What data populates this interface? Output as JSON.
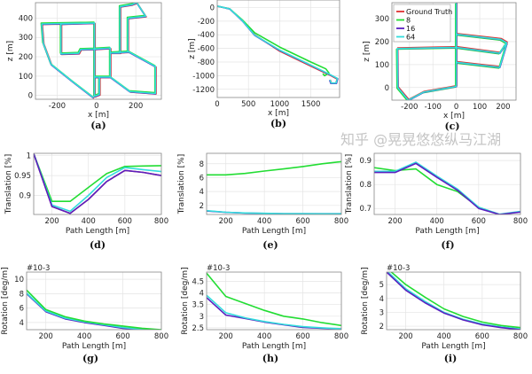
{
  "colors": {
    "ground_truth": "#e03030",
    "8": "#22dd33",
    "16": "#5a1fc0",
    "64": "#33dddd"
  },
  "watermark": "知乎 @晃晃悠悠纵马江湖",
  "chart_data": [
    {
      "id": "a",
      "type": "line",
      "caption": "(a)",
      "xlabel": "x [m]",
      "ylabel": "z [m]",
      "xlim": [
        -310,
        330
      ],
      "ylim": [
        -20,
        480
      ],
      "xticks": [
        -200,
        0,
        200
      ],
      "yticks": [
        0,
        100,
        200,
        300,
        400
      ],
      "grid": true,
      "series": [
        {
          "color_key": "ground_truth",
          "offset": [
            3,
            -3
          ]
        },
        {
          "color_key": "8",
          "offset": [
            -3,
            4
          ]
        },
        {
          "color_key": "16",
          "offset": [
            0,
            -2
          ]
        },
        {
          "color_key": "64",
          "offset": [
            0,
            0
          ]
        }
      ],
      "points": [
        [
          -15,
          -12
        ],
        [
          -120,
          70
        ],
        [
          -230,
          160
        ],
        [
          -270,
          270
        ],
        [
          -278,
          370
        ],
        [
          -180,
          372
        ],
        [
          -10,
          375
        ],
        [
          -10,
          240
        ],
        [
          -80,
          238
        ],
        [
          -90,
          218
        ],
        [
          -180,
          215
        ],
        [
          -180,
          370
        ],
        [
          -10,
          375
        ],
        [
          -10,
          95
        ],
        [
          70,
          95
        ],
        [
          70,
          245
        ],
        [
          -10,
          240
        ],
        [
          -10,
          -5
        ],
        [
          15,
          5
        ],
        [
          15,
          95
        ],
        [
          70,
          95
        ],
        [
          170,
          20
        ],
        [
          300,
          10
        ],
        [
          300,
          150
        ],
        [
          165,
          225
        ],
        [
          75,
          220
        ],
        [
          120,
          220
        ],
        [
          120,
          460
        ],
        [
          180,
          470
        ],
        [
          205,
          480
        ],
        [
          250,
          410
        ],
        [
          160,
          400
        ],
        [
          160,
          225
        ]
      ]
    },
    {
      "id": "b",
      "type": "line",
      "caption": "(b)",
      "xlabel": "x [m]",
      "ylabel": "z [m]",
      "xlim": [
        0,
        1960
      ],
      "ylim": [
        -1320,
        110
      ],
      "xticks": [
        0,
        500,
        1000,
        1500
      ],
      "yticks": [
        0,
        -200,
        -400,
        -600,
        -800,
        -1000,
        -1200
      ],
      "grid": true,
      "series": [
        {
          "color_key": "ground_truth",
          "points": [
            [
              0,
              20
            ],
            [
              200,
              -20
            ],
            [
              400,
              -190
            ],
            [
              600,
              -400
            ],
            [
              1000,
              -640
            ],
            [
              1500,
              -860
            ],
            [
              1800,
              -990
            ],
            [
              1920,
              -1050
            ],
            [
              1900,
              -1110
            ],
            [
              1830,
              -1110
            ],
            [
              1810,
              -1060
            ]
          ]
        },
        {
          "color_key": "8",
          "points": [
            [
              0,
              20
            ],
            [
              200,
              -20
            ],
            [
              400,
              -180
            ],
            [
              600,
              -370
            ],
            [
              1000,
              -580
            ],
            [
              1500,
              -800
            ],
            [
              1740,
              -900
            ],
            [
              1790,
              -960
            ],
            [
              1720,
              -1000
            ],
            [
              1690,
              -970
            ]
          ]
        },
        {
          "color_key": "16",
          "points": [
            [
              0,
              20
            ],
            [
              200,
              -22
            ],
            [
              400,
              -195
            ],
            [
              600,
              -410
            ],
            [
              1000,
              -630
            ],
            [
              1500,
              -850
            ],
            [
              1800,
              -985
            ],
            [
              1930,
              -1045
            ],
            [
              1910,
              -1115
            ],
            [
              1820,
              -1115
            ],
            [
              1800,
              -1065
            ]
          ]
        },
        {
          "color_key": "64",
          "points": [
            [
              0,
              20
            ],
            [
              200,
              -20
            ],
            [
              400,
              -192
            ],
            [
              600,
              -405
            ],
            [
              1000,
              -625
            ],
            [
              1500,
              -845
            ],
            [
              1800,
              -980
            ],
            [
              1925,
              -1040
            ],
            [
              1905,
              -1108
            ],
            [
              1825,
              -1108
            ],
            [
              1805,
              -1060
            ]
          ]
        }
      ]
    },
    {
      "id": "c",
      "type": "line",
      "caption": "(c)",
      "xlabel": "x [m]",
      "ylabel": "z [m]",
      "xlim": [
        -275,
        255
      ],
      "ylim": [
        -55,
        370
      ],
      "xticks": [
        -200,
        -100,
        0,
        100,
        200
      ],
      "yticks": [
        0,
        100,
        200,
        300
      ],
      "grid": true,
      "legend": {
        "placement": "top-left",
        "entries": [
          "Ground Truth",
          "8",
          "16",
          "64"
        ]
      },
      "series": [
        {
          "name": "Ground Truth",
          "color_key": "ground_truth",
          "offset": [
            2,
            3
          ]
        },
        {
          "name": "8",
          "color_key": "8",
          "offset": [
            -3,
            -3
          ]
        },
        {
          "name": "16",
          "color_key": "16",
          "offset": [
            1,
            -1
          ]
        },
        {
          "name": "64",
          "color_key": "64",
          "offset": [
            0,
            0
          ]
        }
      ],
      "points": [
        [
          0,
          370
        ],
        [
          0,
          5
        ],
        [
          -140,
          -20
        ],
        [
          -205,
          -55
        ],
        [
          -250,
          0
        ],
        [
          -252,
          170
        ],
        [
          0,
          175
        ],
        [
          185,
          150
        ],
        [
          215,
          195
        ],
        [
          190,
          210
        ],
        [
          0,
          232
        ],
        [
          0,
          110
        ],
        [
          185,
          88
        ],
        [
          215,
          190
        ]
      ]
    },
    {
      "id": "d",
      "type": "line",
      "caption": "(d)",
      "xlabel": "Path Length [m]",
      "ylabel": "Translation [%]",
      "xlim": [
        100,
        800
      ],
      "ylim": [
        0.852,
        1.006
      ],
      "xticks": [
        200,
        400,
        600,
        800
      ],
      "yticks": [
        0.9,
        0.95,
        1
      ],
      "ytick_labels": [
        "0.9",
        "0.95",
        "1"
      ],
      "grid": true,
      "x": [
        100,
        200,
        300,
        400,
        500,
        600,
        700,
        800
      ],
      "series": [
        {
          "color_key": "ground_truth",
          "values": [
            1.005,
            0.872,
            0.855,
            0.89,
            0.935,
            0.963,
            0.958,
            0.95
          ]
        },
        {
          "color_key": "8",
          "values": [
            1.005,
            0.885,
            0.885,
            0.92,
            0.955,
            0.973,
            0.974,
            0.975
          ]
        },
        {
          "color_key": "64",
          "values": [
            1.005,
            0.876,
            0.86,
            0.9,
            0.945,
            0.97,
            0.965,
            0.96
          ]
        },
        {
          "color_key": "16",
          "values": [
            1.005,
            0.872,
            0.855,
            0.89,
            0.935,
            0.963,
            0.958,
            0.95
          ]
        }
      ]
    },
    {
      "id": "e",
      "type": "line",
      "caption": "(e)",
      "xlabel": "Path Length [m]",
      "ylabel": "Translation [%]",
      "xlim": [
        100,
        800
      ],
      "ylim": [
        0.7,
        9.5
      ],
      "xticks": [
        200,
        400,
        600,
        800
      ],
      "yticks": [
        2,
        4,
        6,
        8
      ],
      "grid": true,
      "x": [
        100,
        200,
        300,
        400,
        500,
        600,
        700,
        800
      ],
      "series": [
        {
          "color_key": "8",
          "values": [
            6.4,
            6.4,
            6.6,
            6.95,
            7.25,
            7.6,
            8.0,
            8.3
          ]
        },
        {
          "color_key": "16",
          "values": [
            1.2,
            1.0,
            0.9,
            0.85,
            0.8,
            0.8,
            0.8,
            0.8
          ]
        },
        {
          "color_key": "64",
          "values": [
            1.25,
            1.02,
            0.92,
            0.86,
            0.82,
            0.81,
            0.8,
            0.82
          ]
        }
      ]
    },
    {
      "id": "f",
      "type": "line",
      "caption": "(f)",
      "xlabel": "Path Length [m]",
      "ylabel": "Translation [%]",
      "xlim": [
        100,
        800
      ],
      "ylim": [
        0.675,
        0.93
      ],
      "xticks": [
        200,
        400,
        600,
        800
      ],
      "yticks": [
        0.7,
        0.8,
        0.9
      ],
      "grid": true,
      "x": [
        100,
        200,
        300,
        400,
        500,
        600,
        700,
        800
      ],
      "series": [
        {
          "color_key": "8",
          "values": [
            0.87,
            0.858,
            0.865,
            0.8,
            0.77,
            0.705,
            0.675,
            0.686
          ]
        },
        {
          "color_key": "64",
          "values": [
            0.855,
            0.855,
            0.893,
            0.835,
            0.78,
            0.705,
            0.676,
            0.688
          ]
        },
        {
          "color_key": "16",
          "values": [
            0.85,
            0.85,
            0.888,
            0.83,
            0.775,
            0.7,
            0.675,
            0.685
          ]
        }
      ]
    },
    {
      "id": "g",
      "type": "line",
      "caption": "(g)",
      "xlabel": "Path Length [m]",
      "ylabel": "Rotation [deg/m]",
      "exponent": "#10-3",
      "xlim": [
        100,
        800
      ],
      "ylim": [
        3,
        11
      ],
      "xticks": [
        200,
        400,
        600,
        800
      ],
      "yticks": [
        4,
        6,
        8,
        10
      ],
      "grid": true,
      "x": [
        100,
        200,
        300,
        400,
        500,
        600,
        700,
        800
      ],
      "series": [
        {
          "color_key": "16",
          "values": [
            8.0,
            5.5,
            4.5,
            4.0,
            3.6,
            3.2,
            3.0,
            2.9
          ]
        },
        {
          "color_key": "64",
          "values": [
            8.1,
            5.6,
            4.6,
            4.1,
            3.7,
            3.3,
            3.05,
            2.95
          ]
        },
        {
          "color_key": "8",
          "values": [
            8.5,
            5.8,
            4.8,
            4.2,
            3.8,
            3.5,
            3.2,
            3.0
          ]
        }
      ]
    },
    {
      "id": "h",
      "type": "line",
      "caption": "(h)",
      "xlabel": "Path Length [m]",
      "ylabel": "Rotation [deg/m]",
      "exponent": "#10-3",
      "xlim": [
        100,
        800
      ],
      "ylim": [
        2.42,
        4.9
      ],
      "xticks": [
        200,
        400,
        600,
        800
      ],
      "yticks": [
        2.5,
        3,
        3.5,
        4,
        4.5
      ],
      "grid": true,
      "x": [
        100,
        200,
        300,
        400,
        500,
        600,
        700,
        800
      ],
      "series": [
        {
          "color_key": "8",
          "values": [
            4.85,
            3.85,
            3.55,
            3.25,
            3.0,
            2.88,
            2.72,
            2.6
          ]
        },
        {
          "color_key": "16",
          "values": [
            3.8,
            3.05,
            2.9,
            2.75,
            2.63,
            2.52,
            2.48,
            2.45
          ]
        },
        {
          "color_key": "64",
          "values": [
            3.9,
            3.15,
            2.93,
            2.77,
            2.65,
            2.55,
            2.5,
            2.46
          ]
        }
      ]
    },
    {
      "id": "i",
      "type": "line",
      "caption": "(i)",
      "xlabel": "Path Length [m]",
      "ylabel": "Rotation [deg/m]",
      "exponent": "#10-3",
      "xlim": [
        100,
        800
      ],
      "ylim": [
        1.75,
        5.9
      ],
      "xticks": [
        200,
        400,
        600,
        800
      ],
      "yticks": [
        2,
        3,
        4,
        5
      ],
      "grid": true,
      "x": [
        100,
        200,
        300,
        400,
        500,
        600,
        700,
        800
      ],
      "series": [
        {
          "color_key": "8",
          "values": [
            6.2,
            5.0,
            4.1,
            3.25,
            2.7,
            2.3,
            2.05,
            1.9
          ]
        },
        {
          "color_key": "64",
          "values": [
            6.0,
            4.7,
            3.8,
            3.0,
            2.5,
            2.15,
            1.95,
            1.8
          ]
        },
        {
          "color_key": "16",
          "values": [
            5.9,
            4.6,
            3.7,
            2.95,
            2.45,
            2.1,
            1.9,
            1.75
          ]
        }
      ]
    }
  ]
}
